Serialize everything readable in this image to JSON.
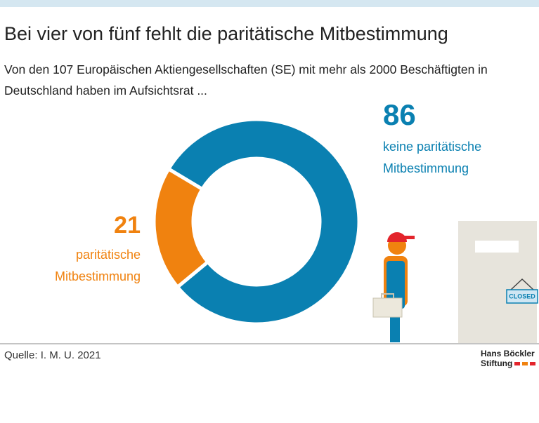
{
  "chart_data": {
    "type": "donut",
    "title": "Bei vier von fünf fehlt die paritätische Mitbestimmung",
    "subtitle": "Von den 107 Europäischen Aktiengesellschaften (SE) mit mehr als 2000 Beschäftigten in Deutschland haben im Aufsichtsrat ...",
    "categories": [
      "keine paritätische Mitbestimmung",
      "paritätische Mitbestimmung"
    ],
    "values": [
      86,
      21
    ],
    "colors": [
      "#0a80b1",
      "#f0820f"
    ],
    "door_sign": "CLOSED",
    "source": "Quelle: I. M. U. 2021",
    "logo_line1": "Hans Böckler",
    "logo_line2": "Stiftung"
  }
}
